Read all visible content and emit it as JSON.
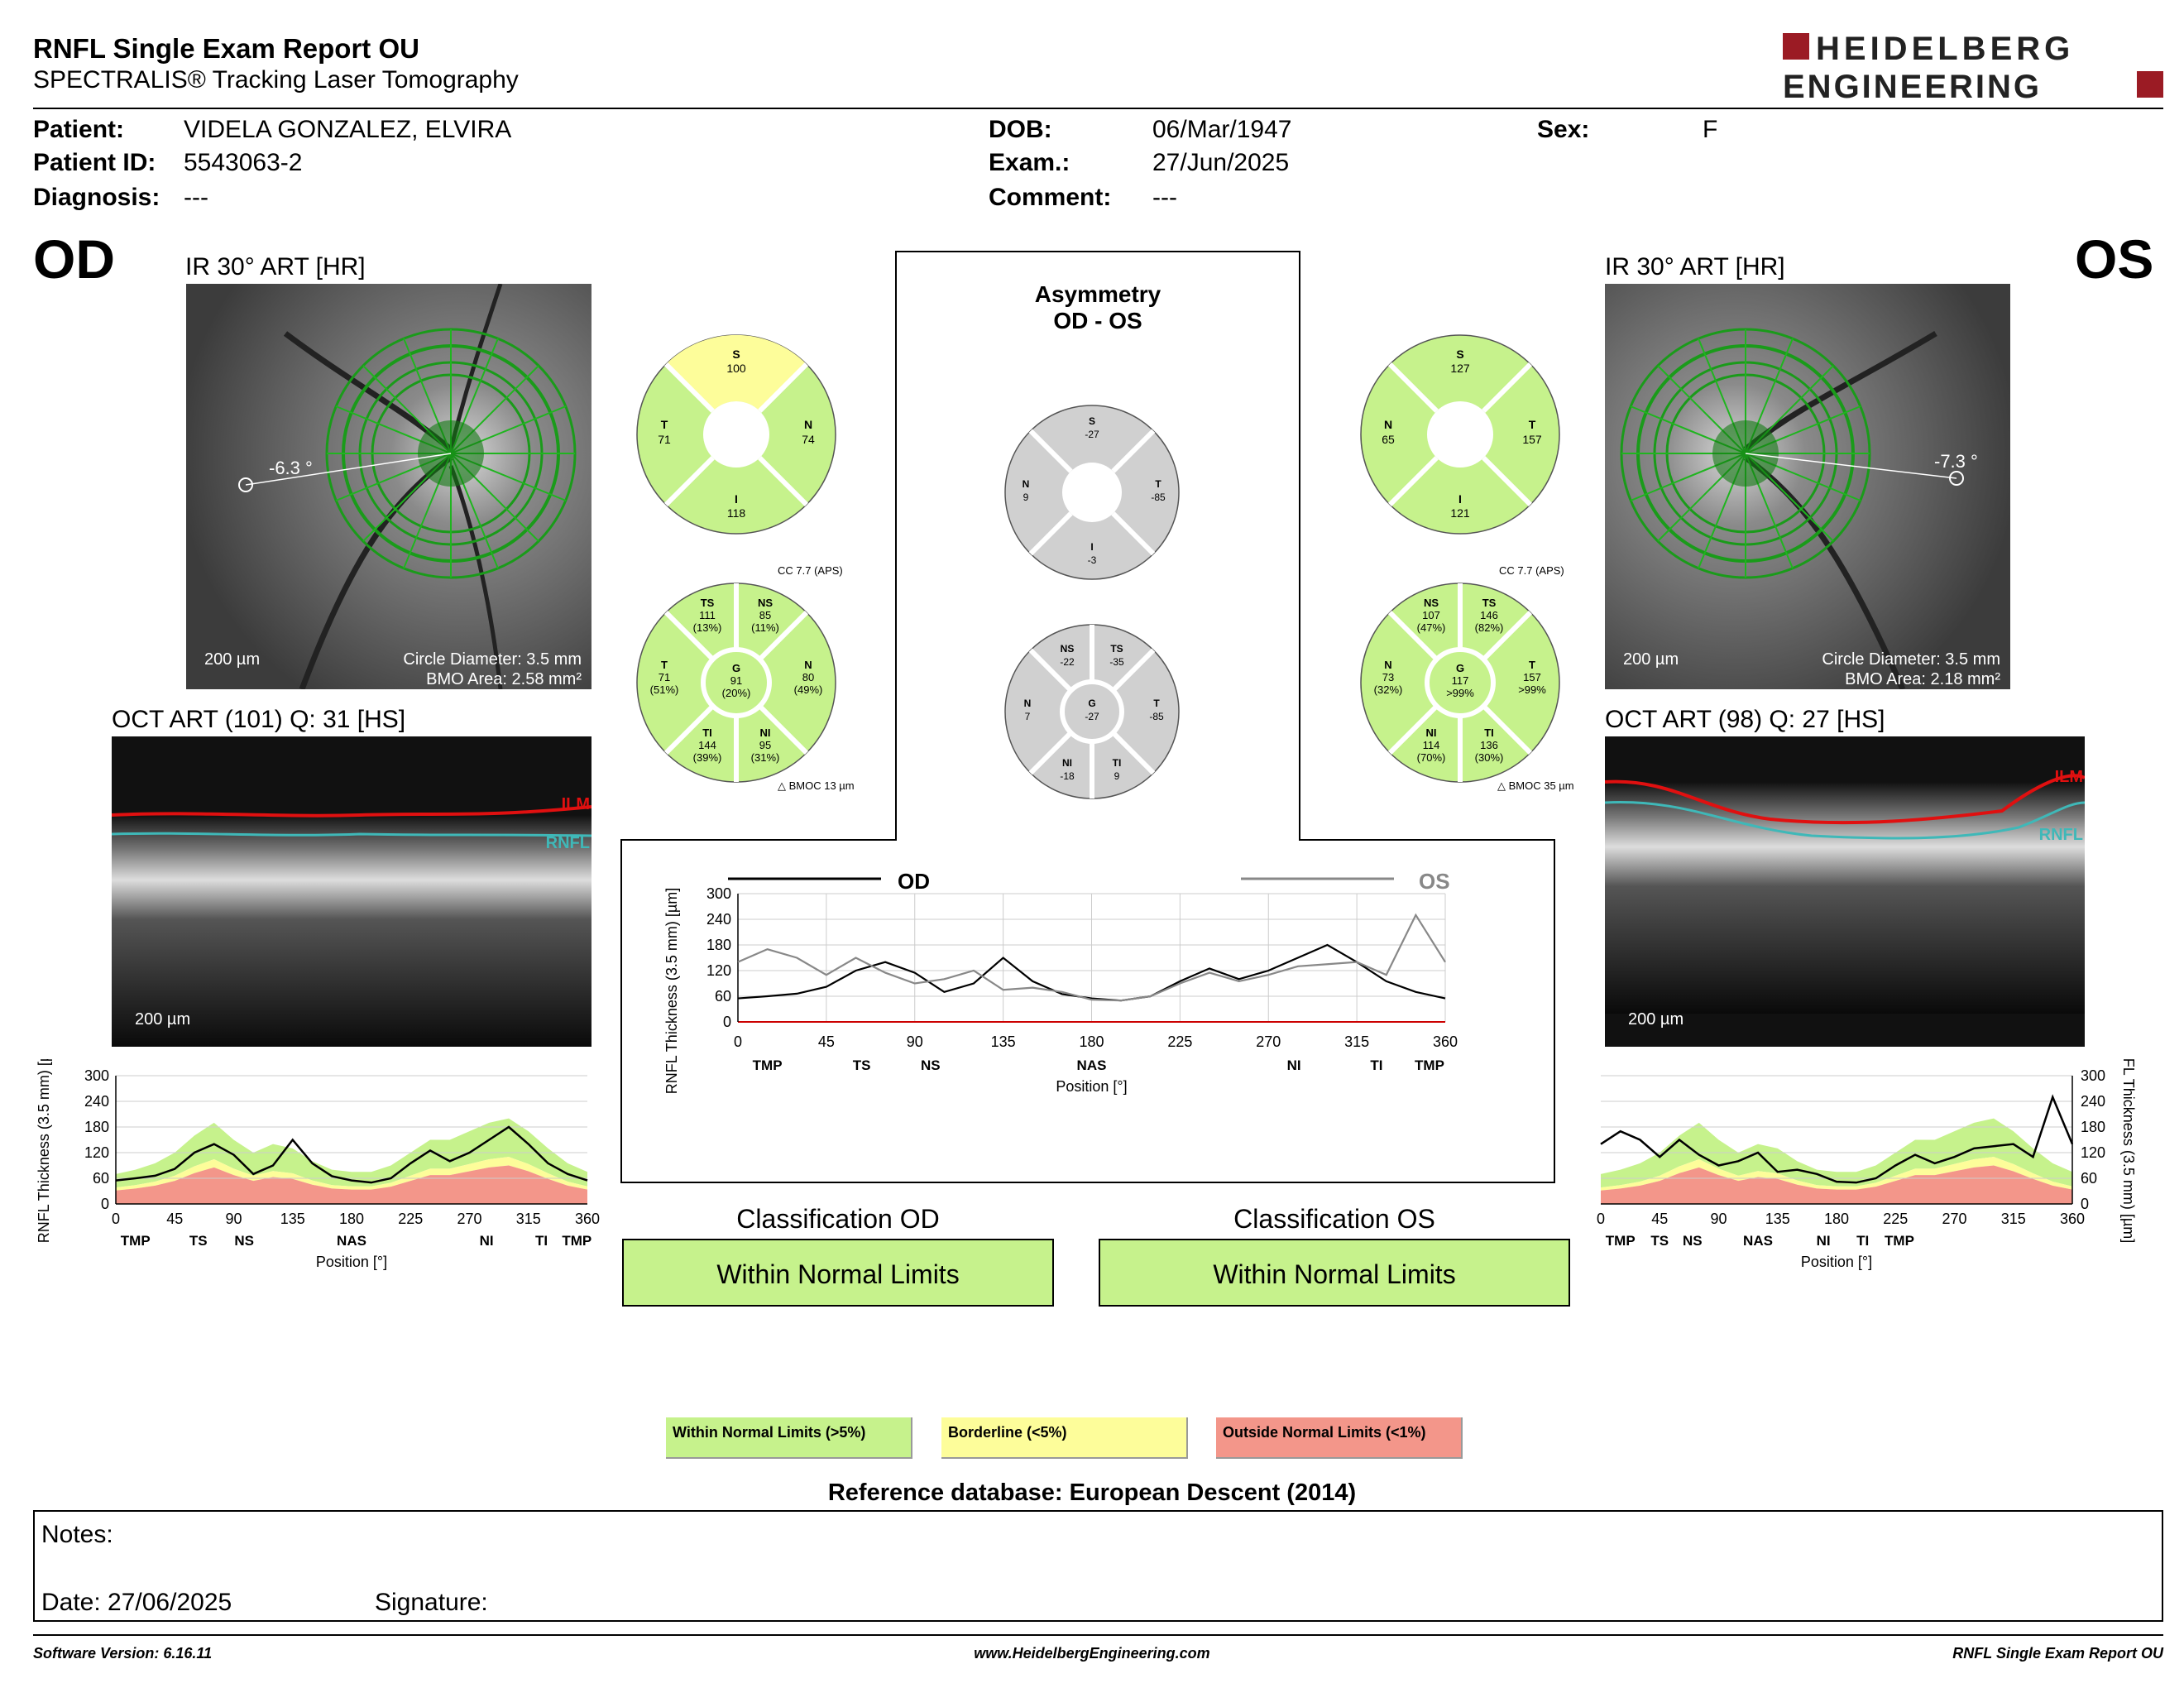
{
  "header": {
    "title": "RNFL Single Exam Report OU",
    "subtitle": "SPECTRALIS® Tracking Laser Tomography",
    "logo_line1": "HEIDELBERG",
    "logo_line2": "ENGINEERING"
  },
  "patient": {
    "patient_label": "Patient:",
    "patient_value": "VIDELA GONZALEZ, ELVIRA",
    "id_label": "Patient ID:",
    "id_value": "5543063-2",
    "diagnosis_label": "Diagnosis:",
    "diagnosis_value": "---",
    "dob_label": "DOB:",
    "dob_value": "06/Mar/1947",
    "exam_label": "Exam.:",
    "exam_value": "27/Jun/2025",
    "comment_label": "Comment:",
    "comment_value": "---",
    "sex_label": "Sex:",
    "sex_value": "F"
  },
  "od": {
    "eye_label": "OD",
    "ir_caption": "IR 30° ART [HR]",
    "angle": "-6.3 °",
    "scale": "200 µm",
    "circle_diameter": "Circle Diameter: 3.5 mm",
    "bmo_area": "BMO Area: 2.58 mm²",
    "oct_caption": "OCT ART (101) Q: 31 [HS]",
    "ilm": "ILM",
    "rnfl": "RNFL",
    "cc": "CC 7.7 (APS)",
    "bmoc": "BMOC 13 µm",
    "quad": {
      "S": "100",
      "T": "71",
      "N": "74",
      "I": "118"
    },
    "sect": {
      "TS": "111",
      "TS_p": "(13%)",
      "NS": "85",
      "NS_p": "(11%)",
      "T": "71",
      "T_p": "(51%)",
      "G": "91",
      "G_p": "(20%)",
      "N": "80",
      "N_p": "(49%)",
      "TI": "144",
      "TI_p": "(39%)",
      "NI": "95",
      "NI_p": "(31%)"
    }
  },
  "os": {
    "eye_label": "OS",
    "ir_caption": "IR 30° ART [HR]",
    "angle": "-7.3 °",
    "scale": "200 µm",
    "circle_diameter": "Circle Diameter: 3.5 mm",
    "bmo_area": "BMO Area: 2.18 mm²",
    "oct_caption": "OCT ART (98) Q: 27 [HS]",
    "ilm": "ILM",
    "rnfl": "RNFL",
    "cc": "CC 7.7 (APS)",
    "bmoc": "BMOC 35 µm",
    "quad": {
      "S": "127",
      "N": "65",
      "T": "157",
      "I": "121"
    },
    "sect": {
      "NS": "107",
      "NS_p": "(47%)",
      "TS": "146",
      "TS_p": "(82%)",
      "N": "73",
      "N_p": "(32%)",
      "G": "117",
      "G_p": ">99%",
      "T": "157",
      "T_p": ">99%",
      "NI": "114",
      "NI_p": "(70%)",
      "TI": "136",
      "TI_p": "(30%)"
    }
  },
  "asym": {
    "title1": "Asymmetry",
    "title2": "OD - OS",
    "quad": {
      "S": "-27",
      "N": "9",
      "T": "-85",
      "I": "-3"
    },
    "sect": {
      "NS": "-22",
      "TS": "-35",
      "N": "7",
      "G": "-27",
      "T": "-85",
      "NI": "-18",
      "TI": "9"
    }
  },
  "sector_labels": {
    "S": "S",
    "T": "T",
    "N": "N",
    "I": "I",
    "TS": "TS",
    "NS": "NS",
    "G": "G",
    "TI": "TI",
    "NI": "NI"
  },
  "compare_chart": {
    "od_label": "OD",
    "os_label": "OS",
    "ylabel": "RNFL Thickness (3.5 mm) [µm]",
    "xlabel": "Position [°]"
  },
  "classification": {
    "od_title": "Classification OD",
    "od_value": "Within Normal Limits",
    "os_title": "Classification OS",
    "os_value": "Within Normal Limits"
  },
  "legend": {
    "wnl": "Within Normal Limits (>5%)",
    "bl": "Borderline (<5%)",
    "onl": "Outside Normal Limits (<1%)",
    "colors": {
      "wnl": "#c6f28c",
      "bl": "#fdfd9a",
      "onl": "#f3968a"
    }
  },
  "reference": "Reference database: European Descent (2014)",
  "notes": {
    "notes_label": "Notes:",
    "date_label": "Date: 27/06/2025",
    "signature_label": "Signature:"
  },
  "footer": {
    "left": "Software Version: 6.16.11",
    "center": "www.HeidelbergEngineering.com",
    "right": "RNFL Single Exam Report OU"
  },
  "chart_data": [
    {
      "type": "line",
      "title": "OD",
      "xlabel": "Position [°]",
      "ylabel": "RNFL Thickness (3.5 mm) [µm]",
      "xlim": [
        0,
        360
      ],
      "ylim": [
        0,
        300
      ],
      "x_ticks": [
        0,
        45,
        90,
        135,
        180,
        225,
        270,
        315,
        360
      ],
      "y_ticks": [
        0,
        60,
        120,
        180,
        240,
        300
      ],
      "sector_labels": [
        {
          "x": 15,
          "label": "TMP"
        },
        {
          "x": 63,
          "label": "TS"
        },
        {
          "x": 98,
          "label": "NS"
        },
        {
          "x": 180,
          "label": "NAS"
        },
        {
          "x": 283,
          "label": "NI"
        },
        {
          "x": 325,
          "label": "TI"
        },
        {
          "x": 352,
          "label": "TMP"
        }
      ],
      "series": [
        {
          "x": [
            0,
            15,
            30,
            45,
            60,
            75,
            90,
            105,
            120,
            135,
            150,
            165,
            180,
            195,
            210,
            225,
            240,
            255,
            270,
            285,
            300,
            315,
            330,
            345,
            360
          ],
          "values": [
            55,
            60,
            66,
            82,
            120,
            140,
            115,
            70,
            90,
            150,
            95,
            65,
            55,
            50,
            60,
            95,
            125,
            100,
            120,
            150,
            180,
            140,
            95,
            70,
            55
          ]
        }
      ]
    },
    {
      "type": "line",
      "title": "OS",
      "xlabel": "Position [°]",
      "ylabel": "RNFL Thickness (3.5 mm) [µm]",
      "xlim": [
        0,
        360
      ],
      "ylim": [
        0,
        300
      ],
      "x_ticks": [
        0,
        45,
        90,
        135,
        180,
        225,
        270,
        315,
        360
      ],
      "y_ticks": [
        0,
        60,
        120,
        180,
        240,
        300
      ],
      "sector_labels": [
        {
          "x": 15,
          "label": "TMP"
        },
        {
          "x": 45,
          "label": "TS"
        },
        {
          "x": 70,
          "label": "NS"
        },
        {
          "x": 120,
          "label": "NAS"
        },
        {
          "x": 170,
          "label": "NI"
        },
        {
          "x": 200,
          "label": "TI"
        },
        {
          "x": 228,
          "label": "TMP"
        }
      ],
      "series": [
        {
          "x": [
            0,
            15,
            30,
            45,
            60,
            75,
            90,
            105,
            120,
            135,
            150,
            165,
            180,
            195,
            210,
            225,
            240,
            255,
            270,
            285,
            300,
            315,
            330,
            345,
            360
          ],
          "values": [
            140,
            170,
            150,
            110,
            150,
            115,
            90,
            100,
            120,
            75,
            80,
            70,
            52,
            50,
            60,
            90,
            115,
            95,
            110,
            130,
            135,
            140,
            110,
            250,
            140
          ]
        }
      ]
    },
    {
      "type": "line",
      "title": "OD - OS",
      "xlabel": "Position [°]",
      "ylabel": "RNFL Thickness (3.5 mm) [µm]",
      "xlim": [
        0,
        360
      ],
      "ylim": [
        0,
        300
      ],
      "x_ticks": [
        0,
        45,
        90,
        135,
        180,
        225,
        270,
        315,
        360
      ],
      "y_ticks": [
        0,
        60,
        120,
        180,
        240,
        300
      ],
      "series": [
        {
          "name": "OD",
          "values": [
            55,
            60,
            66,
            82,
            120,
            140,
            115,
            70,
            90,
            150,
            95,
            65,
            55,
            50,
            60,
            95,
            125,
            100,
            120,
            150,
            180,
            140,
            95,
            70,
            55
          ]
        },
        {
          "name": "OS",
          "values": [
            140,
            170,
            150,
            110,
            150,
            115,
            90,
            100,
            120,
            75,
            80,
            70,
            52,
            50,
            60,
            90,
            115,
            95,
            110,
            130,
            135,
            140,
            110,
            250,
            140
          ]
        }
      ],
      "x": [
        0,
        15,
        30,
        45,
        60,
        75,
        90,
        105,
        120,
        135,
        150,
        165,
        180,
        195,
        210,
        225,
        240,
        255,
        270,
        285,
        300,
        315,
        330,
        345,
        360
      ]
    }
  ]
}
